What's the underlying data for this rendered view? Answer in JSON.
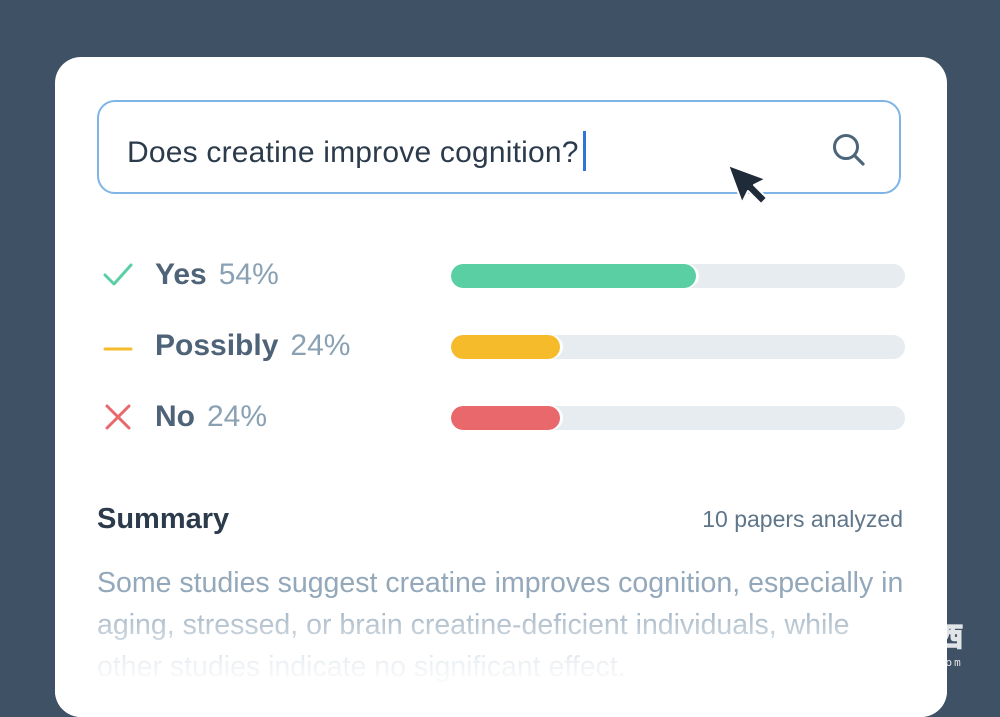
{
  "search": {
    "value": "Does creatine improve cognition?",
    "icon": "search-icon"
  },
  "results": [
    {
      "label": "Yes",
      "percent_label": "54%",
      "value": 0.54,
      "color": "#5bcfa4",
      "icon": "check-icon",
      "icon_color": "#5bcfa4"
    },
    {
      "label": "Possibly",
      "percent_label": "24%",
      "value": 0.24,
      "color": "#f5bb2a",
      "icon": "dash-icon",
      "icon_color": "#f5bb2a"
    },
    {
      "label": "No",
      "percent_label": "24%",
      "value": 0.24,
      "color": "#e9686c",
      "icon": "x-icon",
      "icon_color": "#e9686c"
    }
  ],
  "summary": {
    "title": "Summary",
    "count": "10 papers analyzed",
    "text": "Some studies suggest creatine improves cognition, especially in aging, stressed, or brain creatine-deficient individuals, while other studies indicate no significant effect."
  },
  "colors": {
    "background": "#3f5164",
    "card": "#ffffff",
    "search_border": "#7fb4e6",
    "caret": "#2f74d6",
    "track": "#e6ecef"
  },
  "watermark": {
    "logo": "智东西",
    "site": "zhidx.com"
  }
}
